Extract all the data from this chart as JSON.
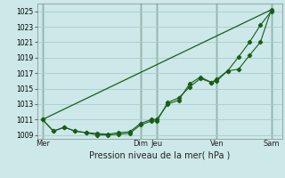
{
  "xlabel": "Pression niveau de la mer( hPa )",
  "bg_color": "#cce8e8",
  "grid_color": "#aacccc",
  "line_color": "#1a5c1a",
  "dark_line_color": "#1a3c1a",
  "ylim": [
    1008.5,
    1026.0
  ],
  "yticks": [
    1009,
    1011,
    1013,
    1015,
    1017,
    1019,
    1021,
    1023,
    1025
  ],
  "xlim": [
    0,
    22.5
  ],
  "day_labels": [
    "Mer",
    "Dim",
    "Jeu",
    "Ven",
    "Sam"
  ],
  "day_x": [
    0.5,
    9.5,
    11.0,
    16.5,
    21.5
  ],
  "vline_x": [
    0.5,
    9.5,
    11.0,
    16.5,
    21.5
  ],
  "series1_x": [
    0.5,
    1.5,
    2.5,
    3.5,
    4.5,
    5.5,
    6.5,
    7.5,
    8.5,
    9.5,
    10.5,
    11.0,
    12.0,
    13.0,
    14.0,
    15.0,
    16.0,
    16.5,
    17.5,
    18.5,
    19.5,
    20.5,
    21.5
  ],
  "series1_y": [
    1011.0,
    1009.5,
    1010.0,
    1009.5,
    1009.3,
    1009.0,
    1009.0,
    1009.1,
    1009.2,
    1010.3,
    1010.8,
    1010.8,
    1013.2,
    1013.8,
    1015.2,
    1016.3,
    1015.8,
    1016.0,
    1017.3,
    1019.1,
    1021.0,
    1023.2,
    1025.0
  ],
  "series2_x": [
    0.5,
    1.5,
    2.5,
    3.5,
    4.5,
    5.5,
    6.5,
    7.5,
    8.5,
    9.5,
    10.5,
    11.0,
    12.0,
    13.0,
    14.0,
    15.0,
    16.0,
    16.5,
    17.5,
    18.5,
    19.5,
    20.5,
    21.5
  ],
  "series2_y": [
    1011.0,
    1009.5,
    1010.0,
    1009.5,
    1009.3,
    1009.2,
    1009.1,
    1009.3,
    1009.4,
    1010.5,
    1011.0,
    1011.0,
    1013.0,
    1013.5,
    1015.6,
    1016.5,
    1015.8,
    1016.2,
    1017.3,
    1017.5,
    1019.3,
    1021.0,
    1025.2
  ],
  "series3_x": [
    0.5,
    21.5
  ],
  "series3_y": [
    1011.0,
    1025.2
  ]
}
